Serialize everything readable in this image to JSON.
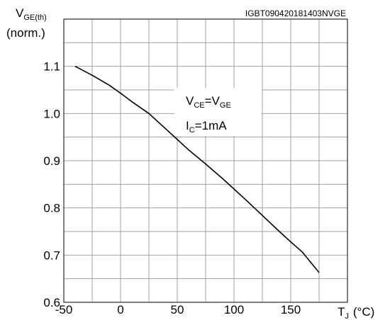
{
  "chart_data": {
    "type": "line",
    "figure_code": "IGBT090420181403NVGE",
    "y_axis": {
      "label_main": "V",
      "label_sub": "GE(th)",
      "label_unit": "(norm.)",
      "lim": [
        0.6,
        1.2
      ],
      "ticks": [
        0.6,
        0.7,
        0.8,
        0.9,
        1.0,
        1.1
      ],
      "tick_labels": [
        "0.6",
        "0.7",
        "0.8",
        "0.9",
        "1.0",
        "1.1"
      ],
      "grid_step": 0.05
    },
    "x_axis": {
      "label_main": "T",
      "label_sub": "J",
      "label_unit": "(°C)",
      "lim": [
        -50,
        200
      ],
      "ticks": [
        -50,
        0,
        50,
        100,
        150
      ],
      "tick_labels": [
        "-50",
        "0",
        "50",
        "100",
        "150"
      ],
      "grid_step": 25
    },
    "grid": true,
    "annotation": {
      "line1_a": "V",
      "line1_a_sub": "CE",
      "line1_b": "=V",
      "line1_b_sub": "GE",
      "line2_a": "I",
      "line2_a_sub": "C",
      "line2_b": "=1mA"
    },
    "series": [
      {
        "x": [
          -40,
          -25,
          -10,
          0,
          10,
          25,
          40,
          50,
          60,
          75,
          90,
          100,
          110,
          125,
          140,
          150,
          160,
          175
        ],
        "y": [
          1.1,
          1.081,
          1.06,
          1.043,
          1.025,
          1.0,
          0.967,
          0.945,
          0.923,
          0.893,
          0.862,
          0.84,
          0.818,
          0.784,
          0.75,
          0.728,
          0.707,
          0.663
        ]
      }
    ]
  }
}
